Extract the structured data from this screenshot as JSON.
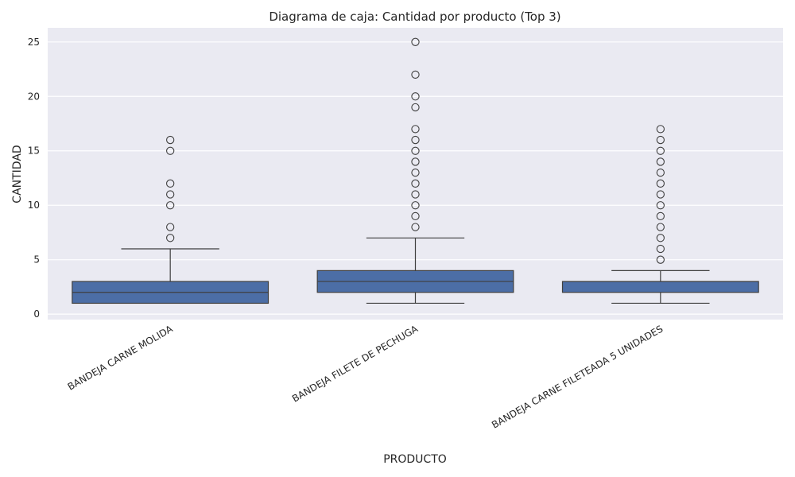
{
  "chart_data": {
    "type": "box",
    "title": "Diagrama de caja: Cantidad por producto (Top 3)",
    "xlabel": "PRODUCTO",
    "ylabel": "CANTIDAD",
    "ylim": [
      -0.5,
      26.3
    ],
    "yticks": [
      0,
      5,
      10,
      15,
      20,
      25
    ],
    "grid": true,
    "categories": [
      "BANDEJA CARNE MOLIDA",
      "BANDEJA FILETE DE PECHUGA",
      "BANDEJA CARNE FILETEADA 5 UNIDADES"
    ],
    "boxes": [
      {
        "min": 1,
        "q1": 1,
        "median": 2,
        "q3": 3,
        "max": 6,
        "outliers": [
          7,
          8,
          10,
          11,
          12,
          15,
          16
        ]
      },
      {
        "min": 1,
        "q1": 2,
        "median": 3,
        "q3": 4,
        "max": 7,
        "outliers": [
          8,
          9,
          10,
          11,
          12,
          13,
          14,
          15,
          16,
          17,
          19,
          20,
          22,
          25
        ]
      },
      {
        "min": 1,
        "q1": 2,
        "median": 3,
        "q3": 3,
        "max": 4,
        "outliers": [
          5,
          6,
          7,
          8,
          9,
          10,
          11,
          12,
          13,
          14,
          15,
          16,
          17
        ]
      }
    ],
    "colors": {
      "box": "#4c6ea6",
      "background": "#eaeaf2",
      "edge": "#3f3f3f"
    }
  }
}
